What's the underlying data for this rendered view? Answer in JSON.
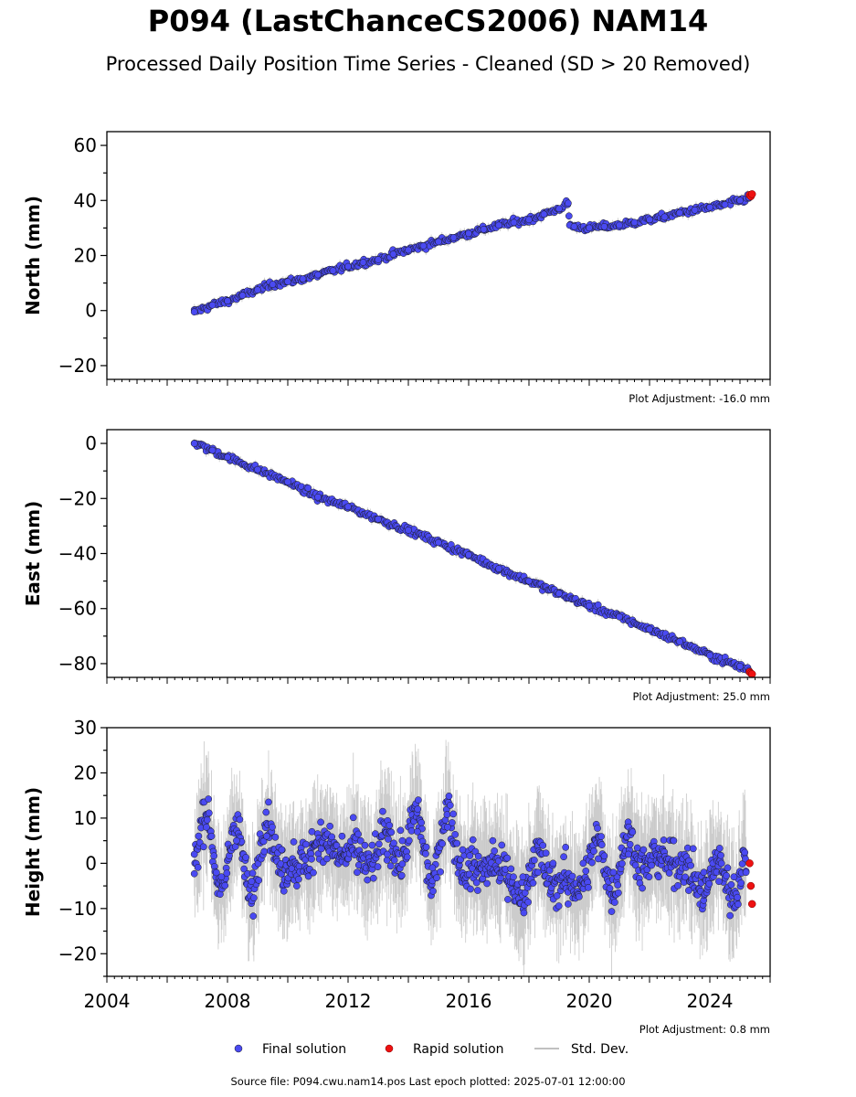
{
  "title": "P094 (LastChanceCS2006) NAM14",
  "subtitle": "Processed Daily Position Time Series - Cleaned (SD > 20 Removed)",
  "source_text": "Source file: P094.cwu.nam14.pos  Last epoch plotted: 2025-07-01 12:00:00",
  "legend": {
    "final": "Final solution",
    "rapid": "Rapid solution",
    "std": "Std. Dev."
  },
  "colors": {
    "final": "#4a4af2",
    "rapid": "#ee1111",
    "std": "#c0c0c0",
    "outline": "#1a1a1a"
  },
  "chart_data": [
    {
      "type": "scatter",
      "ylabel": "North (mm)",
      "ylim": [
        -25,
        65
      ],
      "yticks": [
        -20,
        0,
        20,
        40,
        60
      ],
      "xlim": [
        2004,
        2026
      ],
      "adjustment": "Plot Adjustment: -16.0 mm",
      "series": [
        {
          "name": "Final solution",
          "x": [
            2006.9,
            2007.5,
            2008,
            2008.5,
            2009,
            2009.5,
            2010,
            2010.5,
            2011,
            2011.5,
            2012,
            2012.5,
            2013,
            2013.5,
            2014,
            2014.5,
            2015,
            2015.5,
            2016,
            2016.5,
            2017,
            2017.5,
            2018,
            2018.5,
            2019,
            2019.3,
            2019.35,
            2019.5,
            2020,
            2020.5,
            2021,
            2021.5,
            2022,
            2022.5,
            2023,
            2023.5,
            2024,
            2024.5,
            2025,
            2025.3
          ],
          "y": [
            -0.5,
            2,
            3.5,
            5.5,
            7.5,
            9.5,
            10.5,
            11.5,
            13,
            14.5,
            16,
            17.5,
            18.5,
            20.5,
            22,
            23.5,
            25,
            26.5,
            28,
            29.5,
            31,
            32,
            33,
            35,
            37,
            39,
            31,
            30.5,
            30,
            30.5,
            31,
            32,
            33,
            34,
            35.5,
            36.5,
            37.5,
            38.5,
            40,
            41
          ]
        },
        {
          "name": "Rapid solution",
          "x": [
            2025.32,
            2025.36,
            2025.4
          ],
          "y": [
            42,
            41.5,
            42.3
          ]
        }
      ]
    },
    {
      "type": "scatter",
      "ylabel": "East (mm)",
      "ylim": [
        -85,
        5
      ],
      "yticks": [
        -80,
        -60,
        -40,
        -20,
        0
      ],
      "xlim": [
        2004,
        2026
      ],
      "adjustment": "Plot Adjustment: 25.0 mm",
      "series": [
        {
          "name": "Final solution",
          "x": [
            2006.9,
            2007.5,
            2008,
            2009,
            2010,
            2011,
            2012,
            2013,
            2014,
            2015,
            2016,
            2017,
            2018,
            2019,
            2020,
            2021,
            2022,
            2023,
            2024,
            2025,
            2025.3
          ],
          "y": [
            0,
            -2.5,
            -5,
            -9.5,
            -14,
            -19.5,
            -23,
            -27.5,
            -31.5,
            -36,
            -40.5,
            -45.5,
            -50,
            -54.5,
            -59,
            -63,
            -67.5,
            -72,
            -77,
            -81,
            -82.5
          ]
        },
        {
          "name": "Rapid solution",
          "x": [
            2025.32,
            2025.36,
            2025.4
          ],
          "y": [
            -83,
            -83.5,
            -83.8
          ]
        }
      ]
    },
    {
      "type": "scatter",
      "ylabel": "Height (mm)",
      "ylim": [
        -25,
        30
      ],
      "yticks": [
        -20,
        -10,
        0,
        10,
        20,
        30
      ],
      "xlim": [
        2004,
        2026
      ],
      "xticks": [
        2004,
        2008,
        2012,
        2016,
        2020,
        2024
      ],
      "adjustment": "Plot Adjustment: 0.8 mm",
      "series": [
        {
          "name": "Final solution",
          "x": [
            2006.9,
            2007.3,
            2007.8,
            2008.3,
            2008.8,
            2009.3,
            2009.8,
            2010.3,
            2010.8,
            2011.3,
            2011.8,
            2012.3,
            2012.8,
            2013.3,
            2013.8,
            2014.3,
            2014.8,
            2015.3,
            2015.8,
            2016.3,
            2016.8,
            2017.3,
            2017.8,
            2018.3,
            2018.8,
            2019.3,
            2019.8,
            2020.3,
            2020.8,
            2021.3,
            2021.8,
            2022.3,
            2022.8,
            2023.3,
            2023.8,
            2024.3,
            2024.8,
            2025.2
          ],
          "y": [
            2,
            8,
            -3,
            5,
            -4,
            6,
            3,
            -5,
            7,
            1,
            6,
            -2,
            4,
            2,
            5,
            7,
            -1,
            8,
            3,
            -6,
            5,
            -8,
            -3,
            -2,
            0,
            -9,
            0,
            1,
            -2,
            2,
            3,
            -3,
            5,
            -6,
            -2,
            -4,
            -3,
            -2
          ]
        },
        {
          "name": "Rapid solution",
          "x": [
            2025.32,
            2025.36,
            2025.4
          ],
          "y": [
            0,
            -5,
            -9
          ]
        }
      ]
    }
  ]
}
